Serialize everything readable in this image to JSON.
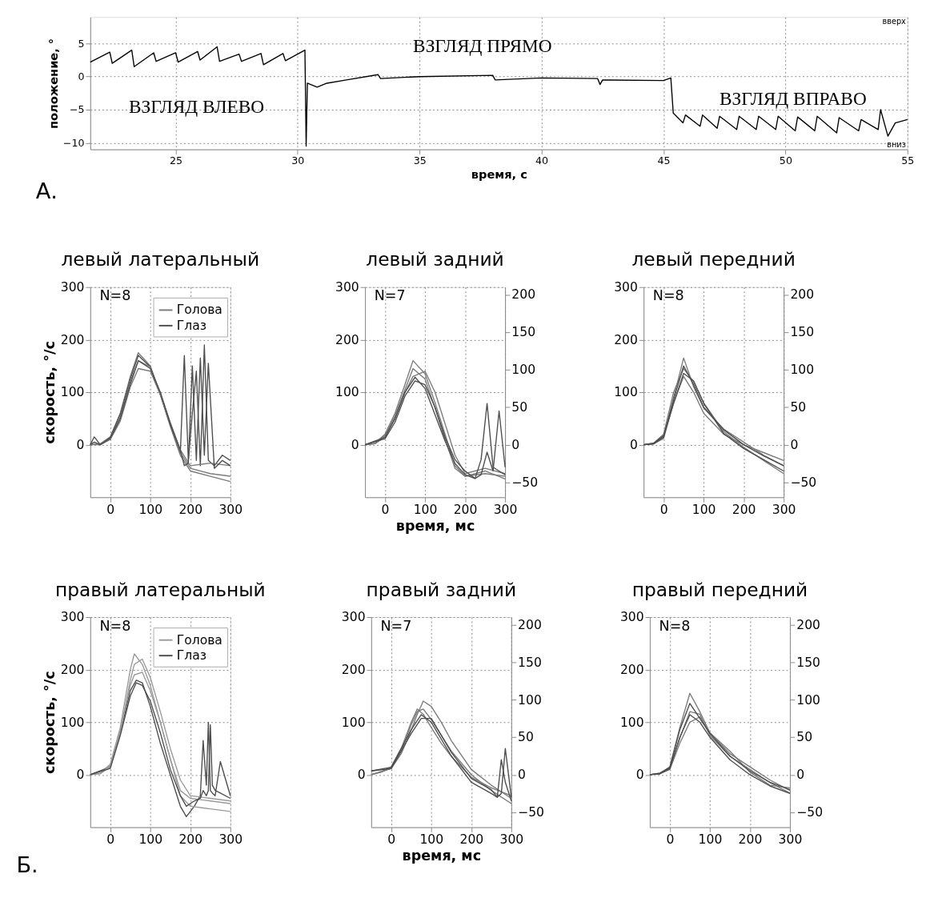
{
  "chart_data": [
    {
      "type": "line",
      "xlabel": "время, с",
      "ylabel": "положение, °",
      "xlim": [
        21.5,
        55
      ],
      "xticks": [
        25,
        30,
        35,
        40,
        45,
        50,
        55
      ],
      "ylim": [
        -11,
        9
      ],
      "yticks": [
        -10,
        -5,
        0,
        5
      ],
      "grid": true,
      "annotations": [
        "вверх",
        "вниз",
        "А.",
        "ВЗГЛЯД ВЛЕВО",
        "ВЗГЛЯД ПРЯМО",
        "ВЗГЛЯД ВПРАВО"
      ],
      "series": [
        {
          "color": "#000000",
          "x": [
            21.5,
            22.3,
            22.4,
            23.2,
            23.3,
            24.1,
            24.2,
            25.0,
            25.1,
            25.9,
            26.0,
            26.7,
            26.8,
            27.6,
            27.7,
            28.5,
            28.6,
            29.4,
            29.5,
            30.3,
            30.35,
            30.4,
            30.8,
            31.2,
            32,
            33.3,
            33.4,
            35,
            38,
            38.1,
            40,
            42.3,
            42.4,
            42.5,
            45,
            45.3,
            45.4,
            45.8,
            45.9,
            46.5,
            46.6,
            47.2,
            47.3,
            48,
            48.1,
            48.8,
            48.9,
            49.6,
            49.7,
            50.4,
            50.5,
            51.2,
            51.3,
            52.1,
            52.2,
            53,
            53.1,
            53.8,
            53.9,
            54.2,
            54.5,
            55
          ],
          "values": [
            2.2,
            3.7,
            2.0,
            4.0,
            1.5,
            3.6,
            2.3,
            3.6,
            2.2,
            3.8,
            2.5,
            4.5,
            2.3,
            3.4,
            2.3,
            3.5,
            1.8,
            3.5,
            2.4,
            4.0,
            -10.5,
            -1.0,
            -1.6,
            -1.0,
            -0.5,
            0.3,
            -0.3,
            0,
            0.2,
            -0.5,
            -0.2,
            -0.3,
            -1.2,
            -0.5,
            -0.6,
            -0.2,
            -5.5,
            -7,
            -5.8,
            -7.5,
            -5.8,
            -7.8,
            -6,
            -8,
            -6,
            -8,
            -6,
            -8,
            -6,
            -8.2,
            -6.1,
            -8.2,
            -6,
            -8.5,
            -6.2,
            -8.2,
            -6.5,
            -8,
            -5,
            -9,
            -7,
            -6.5
          ]
        }
      ]
    },
    {
      "type": "line",
      "title": "левый латеральный",
      "ylabel": "скорость, °/с",
      "xlim": [
        -50,
        300
      ],
      "xticks": [
        0,
        100,
        200,
        300
      ],
      "ylim": [
        -100,
        300
      ],
      "yticks": [
        0,
        100,
        200,
        300
      ],
      "grid": true,
      "legend": "top right",
      "annotations": [
        "N=8"
      ],
      "series": [
        {
          "name": "Голова",
          "color": "#7a7a7a",
          "x": [
            -50,
            -25,
            0,
            25,
            50,
            70,
            100,
            125,
            150,
            175,
            200,
            250,
            300
          ],
          "values": [
            0,
            2,
            15,
            60,
            130,
            175,
            150,
            95,
            35,
            -20,
            -50,
            -60,
            -70
          ]
        },
        {
          "color": "#7a7a7a",
          "x": [
            -50,
            -25,
            0,
            25,
            50,
            70,
            100,
            125,
            150,
            175,
            200,
            250,
            300
          ],
          "values": [
            0,
            0,
            10,
            45,
            110,
            145,
            140,
            95,
            40,
            -15,
            -45,
            -55,
            -60
          ]
        },
        {
          "color": "#7a7a7a",
          "x": [
            -50,
            -25,
            0,
            25,
            50,
            70,
            100,
            125,
            150,
            175,
            200,
            250,
            300
          ],
          "values": [
            0,
            1,
            12,
            52,
            120,
            160,
            148,
            98,
            42,
            -10,
            -40,
            -35,
            -40
          ]
        },
        {
          "name": "Глаз",
          "color": "#4d4d4d",
          "x": [
            -50,
            -40,
            -25,
            0,
            25,
            50,
            70,
            100,
            125,
            150,
            175,
            185,
            195,
            205,
            215,
            225,
            235,
            245,
            260,
            280,
            300
          ],
          "values": [
            0,
            15,
            0,
            14,
            58,
            125,
            170,
            148,
            96,
            38,
            -15,
            170,
            -30,
            60,
            140,
            -40,
            190,
            -30,
            -40,
            -20,
            -30
          ]
        },
        {
          "color": "#4d4d4d",
          "x": [
            -50,
            -40,
            -25,
            0,
            25,
            50,
            70,
            100,
            125,
            150,
            175,
            185,
            195,
            205,
            215,
            225,
            235,
            245,
            260,
            280,
            300
          ],
          "values": [
            0,
            5,
            0,
            12,
            50,
            115,
            160,
            145,
            100,
            40,
            -10,
            -40,
            -35,
            150,
            -30,
            165,
            -20,
            155,
            -45,
            -30,
            -40
          ]
        }
      ]
    },
    {
      "type": "line",
      "title": "левый задний",
      "xlabel": "время, мс",
      "xlim": [
        -50,
        300
      ],
      "xticks": [
        0,
        100,
        200,
        300
      ],
      "ylim": [
        -100,
        300
      ],
      "yticks": [
        0,
        100,
        200,
        300
      ],
      "y2lim": [
        -70,
        210
      ],
      "y2ticks": [
        -50,
        0,
        50,
        100,
        150,
        200
      ],
      "grid": true,
      "annotations": [
        "N=7"
      ],
      "series": [
        {
          "color": "#7a7a7a",
          "x": [
            -50,
            -25,
            0,
            25,
            50,
            70,
            100,
            125,
            150,
            175,
            200,
            250,
            300
          ],
          "values": [
            0,
            3,
            20,
            60,
            115,
            160,
            135,
            80,
            20,
            -40,
            -60,
            -55,
            -60
          ]
        },
        {
          "color": "#7a7a7a",
          "x": [
            -50,
            -25,
            0,
            25,
            50,
            70,
            100,
            125,
            150,
            175,
            200,
            250,
            300
          ],
          "values": [
            0,
            2,
            15,
            50,
            100,
            130,
            140,
            100,
            40,
            -20,
            -55,
            -45,
            -55
          ]
        },
        {
          "color": "#7a7a7a",
          "x": [
            -50,
            -25,
            0,
            25,
            50,
            70,
            100,
            125,
            150,
            175,
            200,
            250,
            300
          ],
          "values": [
            0,
            2,
            18,
            55,
            105,
            145,
            125,
            70,
            10,
            -45,
            -60,
            -50,
            -65
          ]
        },
        {
          "color": "#4d4d4d",
          "axis": "y2",
          "x": [
            -50,
            0,
            25,
            50,
            75,
            100,
            125,
            150,
            175,
            200,
            225,
            240,
            255,
            270,
            285,
            300
          ],
          "values": [
            0,
            10,
            35,
            70,
            90,
            75,
            40,
            5,
            -25,
            -40,
            -45,
            -20,
            55,
            -30,
            -35,
            -40
          ]
        },
        {
          "color": "#4d4d4d",
          "axis": "y2",
          "x": [
            -50,
            0,
            25,
            50,
            75,
            100,
            125,
            150,
            175,
            200,
            225,
            240,
            255,
            270,
            285,
            300
          ],
          "values": [
            0,
            8,
            30,
            65,
            85,
            80,
            50,
            10,
            -20,
            -35,
            -45,
            -40,
            -10,
            -35,
            45,
            -30
          ]
        }
      ]
    },
    {
      "type": "line",
      "title": "левый передний",
      "xlim": [
        -50,
        300
      ],
      "xticks": [
        0,
        100,
        200,
        300
      ],
      "ylim": [
        -100,
        300
      ],
      "yticks": [
        0,
        100,
        200,
        300
      ],
      "y2lim": [
        -70,
        210
      ],
      "y2ticks": [
        -50,
        0,
        50,
        100,
        150,
        200
      ],
      "grid": true,
      "annotations": [
        "N=8"
      ],
      "series": [
        {
          "color": "#7a7a7a",
          "x": [
            -50,
            -25,
            0,
            25,
            50,
            75,
            100,
            150,
            200,
            250,
            300
          ],
          "values": [
            0,
            2,
            15,
            90,
            165,
            110,
            70,
            30,
            5,
            -20,
            -40
          ]
        },
        {
          "color": "#7a7a7a",
          "x": [
            -50,
            -25,
            0,
            25,
            50,
            75,
            100,
            150,
            200,
            250,
            300
          ],
          "values": [
            0,
            3,
            20,
            100,
            145,
            120,
            80,
            25,
            -5,
            -30,
            -55
          ]
        },
        {
          "color": "#7a7a7a",
          "x": [
            -50,
            -25,
            0,
            25,
            50,
            75,
            100,
            150,
            200,
            250,
            300
          ],
          "values": [
            0,
            2,
            12,
            80,
            130,
            100,
            60,
            20,
            0,
            -15,
            -30
          ]
        },
        {
          "color": "#4d4d4d",
          "axis": "y2",
          "x": [
            -50,
            -25,
            0,
            25,
            50,
            75,
            100,
            150,
            200,
            250,
            300
          ],
          "values": [
            0,
            1,
            10,
            60,
            105,
            80,
            50,
            20,
            0,
            -15,
            -28
          ]
        },
        {
          "color": "#4d4d4d",
          "axis": "y2",
          "x": [
            -50,
            -25,
            0,
            25,
            50,
            75,
            100,
            150,
            200,
            250,
            300
          ],
          "values": [
            0,
            2,
            12,
            55,
            95,
            85,
            55,
            15,
            -5,
            -20,
            -35
          ]
        }
      ]
    },
    {
      "type": "line",
      "title": "правый латеральный",
      "ylabel": "скорость, °/с",
      "xlim": [
        -50,
        300
      ],
      "xticks": [
        0,
        100,
        200,
        300
      ],
      "ylim": [
        -100,
        300
      ],
      "yticks": [
        0,
        100,
        200,
        300
      ],
      "grid": true,
      "legend": "top right",
      "annotations": [
        "N=8",
        "Б."
      ],
      "series": [
        {
          "name": "Голова",
          "color": "#9a9a9a",
          "x": [
            -50,
            -25,
            0,
            25,
            50,
            60,
            80,
            100,
            125,
            150,
            175,
            200,
            250,
            300
          ],
          "values": [
            0,
            3,
            20,
            90,
            200,
            230,
            210,
            170,
            100,
            30,
            -30,
            -45,
            -50,
            -55
          ]
        },
        {
          "color": "#9a9a9a",
          "x": [
            -50,
            -25,
            0,
            25,
            50,
            60,
            80,
            100,
            125,
            150,
            175,
            200,
            250,
            300
          ],
          "values": [
            0,
            2,
            15,
            80,
            180,
            210,
            220,
            185,
            120,
            50,
            -10,
            -40,
            -45,
            -50
          ]
        },
        {
          "color": "#9a9a9a",
          "x": [
            -50,
            -25,
            0,
            25,
            50,
            60,
            80,
            100,
            125,
            150,
            175,
            200,
            250,
            300
          ],
          "values": [
            0,
            2,
            18,
            85,
            170,
            190,
            195,
            160,
            100,
            30,
            -40,
            -60,
            -65,
            -70
          ]
        },
        {
          "name": "Глаз",
          "color": "#4d4d4d",
          "x": [
            -50,
            0,
            25,
            50,
            65,
            80,
            100,
            125,
            150,
            175,
            190,
            210,
            225,
            232,
            240,
            245,
            250,
            255,
            262,
            275,
            300
          ],
          "values": [
            0,
            15,
            80,
            160,
            180,
            175,
            130,
            60,
            0,
            -60,
            -80,
            -60,
            -40,
            65,
            -20,
            100,
            -30,
            -35,
            -40,
            25,
            -40
          ]
        },
        {
          "color": "#4d4d4d",
          "x": [
            -50,
            0,
            25,
            50,
            65,
            80,
            100,
            125,
            150,
            175,
            190,
            210,
            225,
            232,
            240,
            245,
            250,
            255,
            262,
            275,
            300
          ],
          "values": [
            0,
            12,
            75,
            150,
            175,
            170,
            140,
            80,
            10,
            -40,
            -60,
            -50,
            -45,
            -30,
            -40,
            -30,
            95,
            -20,
            -30,
            -35,
            -45
          ]
        }
      ]
    },
    {
      "type": "line",
      "title": "правый задний",
      "xlabel": "время, мс",
      "xlim": [
        -50,
        300
      ],
      "xticks": [
        0,
        100,
        200,
        300
      ],
      "ylim": [
        -100,
        300
      ],
      "yticks": [
        0,
        100,
        200,
        300
      ],
      "y2lim": [
        -70,
        210
      ],
      "y2ticks": [
        -50,
        0,
        50,
        100,
        150,
        200
      ],
      "grid": true,
      "annotations": [
        "N=7"
      ],
      "series": [
        {
          "color": "#7a7a7a",
          "x": [
            -50,
            -25,
            0,
            25,
            50,
            65,
            80,
            100,
            125,
            150,
            200,
            250,
            300
          ],
          "values": [
            0,
            5,
            15,
            50,
            100,
            125,
            115,
            90,
            60,
            35,
            -5,
            -25,
            -40
          ]
        },
        {
          "color": "#7a7a7a",
          "x": [
            -50,
            -25,
            0,
            25,
            50,
            65,
            80,
            100,
            125,
            150,
            200,
            250,
            300
          ],
          "values": [
            0,
            5,
            12,
            40,
            85,
            115,
            140,
            130,
            100,
            65,
            10,
            -20,
            -45
          ]
        },
        {
          "color": "#7a7a7a",
          "x": [
            -50,
            -25,
            0,
            25,
            50,
            65,
            80,
            100,
            125,
            150,
            200,
            250,
            300
          ],
          "values": [
            0,
            6,
            14,
            45,
            95,
            120,
            125,
            105,
            75,
            45,
            0,
            -30,
            -55
          ]
        },
        {
          "color": "#4d4d4d",
          "axis": "y2",
          "x": [
            -50,
            0,
            50,
            75,
            100,
            150,
            200,
            250,
            265,
            275,
            285,
            300
          ],
          "values": [
            5,
            10,
            60,
            80,
            70,
            25,
            -10,
            -25,
            -30,
            -25,
            35,
            -30
          ]
        },
        {
          "color": "#4d4d4d",
          "axis": "y2",
          "x": [
            -50,
            0,
            50,
            75,
            100,
            150,
            200,
            250,
            265,
            275,
            285,
            300
          ],
          "values": [
            5,
            8,
            55,
            75,
            75,
            30,
            -5,
            -20,
            -30,
            20,
            -10,
            -35
          ]
        }
      ]
    },
    {
      "type": "line",
      "title": "правый передний",
      "xlim": [
        -50,
        300
      ],
      "xticks": [
        0,
        100,
        200,
        300
      ],
      "ylim": [
        -100,
        300
      ],
      "yticks": [
        0,
        100,
        200,
        300
      ],
      "y2lim": [
        -70,
        210
      ],
      "y2ticks": [
        -50,
        0,
        50,
        100,
        150,
        200
      ],
      "grid": true,
      "annotations": [
        "N=8"
      ],
      "series": [
        {
          "color": "#7a7a7a",
          "x": [
            -50,
            -25,
            0,
            25,
            50,
            75,
            100,
            150,
            200,
            250,
            300
          ],
          "values": [
            0,
            2,
            15,
            90,
            155,
            120,
            80,
            40,
            15,
            -10,
            -30
          ]
        },
        {
          "color": "#7a7a7a",
          "x": [
            -50,
            -25,
            0,
            25,
            50,
            75,
            100,
            150,
            200,
            250,
            300
          ],
          "values": [
            0,
            3,
            12,
            70,
            120,
            115,
            75,
            35,
            10,
            -15,
            -35
          ]
        },
        {
          "color": "#7a7a7a",
          "x": [
            -50,
            -25,
            0,
            25,
            50,
            75,
            100,
            150,
            200,
            250,
            300
          ],
          "values": [
            0,
            2,
            10,
            60,
            100,
            110,
            80,
            45,
            5,
            -20,
            -25
          ]
        },
        {
          "color": "#4d4d4d",
          "axis": "y2",
          "x": [
            -50,
            -25,
            0,
            25,
            50,
            75,
            100,
            150,
            200,
            250,
            300
          ],
          "values": [
            0,
            2,
            10,
            60,
            95,
            75,
            55,
            25,
            5,
            -10,
            -20
          ]
        },
        {
          "color": "#4d4d4d",
          "axis": "y2",
          "x": [
            -50,
            -25,
            0,
            25,
            50,
            75,
            100,
            150,
            200,
            250,
            300
          ],
          "values": [
            0,
            1,
            8,
            50,
            80,
            70,
            50,
            20,
            0,
            -15,
            -25
          ]
        }
      ]
    }
  ]
}
